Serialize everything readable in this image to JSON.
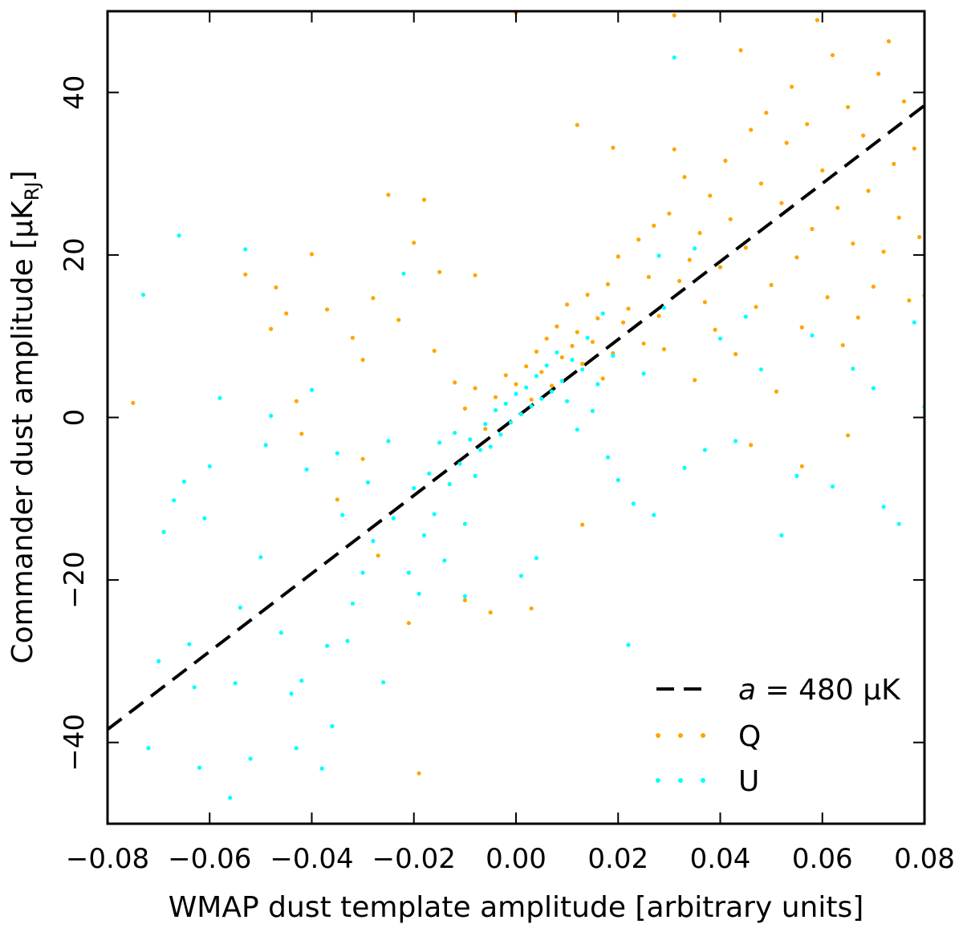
{
  "chart_data": {
    "type": "scatter",
    "title": "",
    "xlabel": "WMAP dust template amplitude [arbitrary units]",
    "ylabel": "Commander dust amplitude [μK",
    "ylabel_sub": "RJ",
    "ylabel_close": "]",
    "xlim": [
      -0.08,
      0.08
    ],
    "ylim": [
      -50,
      50
    ],
    "xticks": [
      -0.08,
      -0.06,
      -0.04,
      -0.02,
      0.0,
      0.02,
      0.04,
      0.06,
      0.08
    ],
    "xtick_labels": [
      "−0.08",
      "−0.06",
      "−0.04",
      "−0.02",
      "0.00",
      "0.02",
      "0.04",
      "0.06",
      "0.08"
    ],
    "yticks": [
      -40,
      -20,
      0,
      20,
      40
    ],
    "ytick_labels": [
      "−40",
      "−20",
      "0",
      "20",
      "40"
    ],
    "fit_line": {
      "name": "a = 480 μK",
      "slope": 480,
      "intercept": 0,
      "color": "#000000",
      "style": "dashed"
    },
    "legend": {
      "position": "bottom-right",
      "entries": [
        {
          "label_prefix": "a",
          "label_rest": " = 480 μK",
          "kind": "line",
          "color": "#000000"
        },
        {
          "label": "Q",
          "kind": "points",
          "color": "#ffa500"
        },
        {
          "label": "U",
          "kind": "points",
          "color": "#00ffff"
        }
      ]
    },
    "series": [
      {
        "name": "Q",
        "color": "#ffa500",
        "points": [
          [
            -0.075,
            1.8
          ],
          [
            -0.053,
            17.6
          ],
          [
            -0.047,
            16.0
          ],
          [
            -0.045,
            12.8
          ],
          [
            -0.048,
            10.9
          ],
          [
            -0.043,
            2.0
          ],
          [
            -0.042,
            -2.0
          ],
          [
            -0.04,
            20.1
          ],
          [
            -0.037,
            13.3
          ],
          [
            -0.035,
            -10.1
          ],
          [
            -0.032,
            9.8
          ],
          [
            -0.03,
            7.1
          ],
          [
            -0.028,
            14.7
          ],
          [
            -0.025,
            27.4
          ],
          [
            -0.023,
            12.0
          ],
          [
            -0.021,
            -25.3
          ],
          [
            -0.02,
            21.5
          ],
          [
            -0.018,
            26.8
          ],
          [
            -0.016,
            8.2
          ],
          [
            -0.015,
            17.9
          ],
          [
            -0.012,
            4.3
          ],
          [
            -0.01,
            1.1
          ],
          [
            -0.008,
            3.6
          ],
          [
            -0.006,
            -1.4
          ],
          [
            -0.004,
            2.5
          ],
          [
            -0.002,
            5.2
          ],
          [
            0.0,
            4.1
          ],
          [
            0.002,
            6.3
          ],
          [
            0.003,
            2.2
          ],
          [
            0.004,
            8.1
          ],
          [
            0.005,
            5.6
          ],
          [
            0.006,
            9.7
          ],
          [
            0.007,
            3.9
          ],
          [
            0.008,
            11.2
          ],
          [
            0.009,
            7.4
          ],
          [
            0.01,
            13.9
          ],
          [
            0.011,
            8.8
          ],
          [
            0.012,
            10.5
          ],
          [
            0.013,
            6.6
          ],
          [
            0.014,
            15.1
          ],
          [
            0.015,
            9.3
          ],
          [
            0.016,
            12.2
          ],
          [
            0.017,
            4.8
          ],
          [
            0.018,
            16.4
          ],
          [
            0.019,
            7.9
          ],
          [
            0.02,
            19.8
          ],
          [
            0.021,
            11.7
          ],
          [
            0.022,
            13.4
          ],
          [
            0.024,
            21.9
          ],
          [
            0.025,
            9.1
          ],
          [
            0.026,
            17.3
          ],
          [
            0.027,
            23.6
          ],
          [
            0.028,
            12.5
          ],
          [
            0.029,
            8.4
          ],
          [
            0.03,
            25.1
          ],
          [
            0.031,
            33.0
          ],
          [
            0.032,
            16.8
          ],
          [
            0.033,
            29.6
          ],
          [
            0.034,
            19.4
          ],
          [
            0.035,
            4.6
          ],
          [
            0.036,
            22.7
          ],
          [
            0.037,
            14.2
          ],
          [
            0.038,
            27.3
          ],
          [
            0.039,
            10.8
          ],
          [
            0.04,
            18.5
          ],
          [
            0.041,
            31.6
          ],
          [
            0.042,
            24.4
          ],
          [
            0.043,
            7.8
          ],
          [
            0.044,
            45.2
          ],
          [
            0.045,
            20.9
          ],
          [
            0.046,
            35.4
          ],
          [
            0.047,
            13.6
          ],
          [
            0.048,
            28.8
          ],
          [
            0.049,
            37.5
          ],
          [
            0.05,
            16.3
          ],
          [
            0.051,
            3.2
          ],
          [
            0.052,
            26.4
          ],
          [
            0.053,
            33.8
          ],
          [
            0.054,
            40.7
          ],
          [
            0.055,
            19.7
          ],
          [
            0.056,
            11.1
          ],
          [
            0.057,
            36.1
          ],
          [
            0.058,
            23.2
          ],
          [
            0.059,
            48.9
          ],
          [
            0.06,
            30.4
          ],
          [
            0.061,
            14.8
          ],
          [
            0.062,
            44.6
          ],
          [
            0.063,
            25.8
          ],
          [
            0.064,
            8.9
          ],
          [
            0.065,
            38.2
          ],
          [
            0.066,
            21.4
          ],
          [
            0.067,
            12.3
          ],
          [
            0.068,
            34.7
          ],
          [
            0.069,
            27.9
          ],
          [
            0.07,
            16.1
          ],
          [
            0.071,
            42.3
          ],
          [
            0.072,
            20.4
          ],
          [
            0.073,
            46.3
          ],
          [
            0.074,
            31.2
          ],
          [
            0.075,
            24.6
          ],
          [
            0.076,
            38.9
          ],
          [
            0.077,
            14.4
          ],
          [
            0.078,
            33.1
          ],
          [
            0.079,
            22.2
          ],
          [
            0.08,
            15.0
          ],
          [
            -0.019,
            -43.8
          ],
          [
            -0.01,
            -22.5
          ],
          [
            -0.005,
            -24.0
          ],
          [
            0.003,
            -23.5
          ],
          [
            0.013,
            -13.2
          ],
          [
            -0.027,
            -17.0
          ],
          [
            -0.03,
            -5.1
          ],
          [
            0.046,
            -3.4
          ],
          [
            0.056,
            -6.0
          ],
          [
            0.065,
            -2.2
          ],
          [
            0.031,
            49.5
          ],
          [
            0.0,
            49.8
          ],
          [
            -0.008,
            17.5
          ],
          [
            0.012,
            36.0
          ],
          [
            0.019,
            33.2
          ]
        ]
      },
      {
        "name": "U",
        "color": "#00ffff",
        "points": [
          [
            -0.073,
            15.1
          ],
          [
            -0.07,
            -30.0
          ],
          [
            -0.069,
            -14.1
          ],
          [
            -0.067,
            -10.2
          ],
          [
            -0.065,
            -7.9
          ],
          [
            -0.064,
            -27.9
          ],
          [
            -0.063,
            -33.2
          ],
          [
            -0.062,
            -43.1
          ],
          [
            -0.061,
            -12.4
          ],
          [
            -0.06,
            -6.0
          ],
          [
            -0.058,
            2.4
          ],
          [
            -0.056,
            -46.8
          ],
          [
            -0.055,
            -32.7
          ],
          [
            -0.054,
            -23.4
          ],
          [
            -0.052,
            -42.0
          ],
          [
            -0.05,
            -17.2
          ],
          [
            -0.049,
            -3.4
          ],
          [
            -0.048,
            0.2
          ],
          [
            -0.046,
            -26.5
          ],
          [
            -0.044,
            -34.0
          ],
          [
            -0.043,
            -40.7
          ],
          [
            -0.042,
            -32.4
          ],
          [
            -0.041,
            -6.4
          ],
          [
            -0.04,
            3.4
          ],
          [
            -0.038,
            -43.2
          ],
          [
            -0.037,
            -28.1
          ],
          [
            -0.035,
            -4.4
          ],
          [
            -0.034,
            -12.0
          ],
          [
            -0.032,
            -22.9
          ],
          [
            -0.03,
            -19.1
          ],
          [
            -0.029,
            -8.0
          ],
          [
            -0.028,
            -15.2
          ],
          [
            -0.026,
            -32.6
          ],
          [
            -0.025,
            -2.9
          ],
          [
            -0.024,
            -12.4
          ],
          [
            -0.022,
            17.7
          ],
          [
            -0.021,
            -19.1
          ],
          [
            -0.02,
            -8.7
          ],
          [
            -0.019,
            -21.7
          ],
          [
            -0.018,
            -14.5
          ],
          [
            -0.017,
            -6.9
          ],
          [
            -0.016,
            -11.9
          ],
          [
            -0.015,
            -3.1
          ],
          [
            -0.014,
            -17.6
          ],
          [
            -0.013,
            -8.2
          ],
          [
            -0.012,
            -1.9
          ],
          [
            -0.011,
            -5.7
          ],
          [
            -0.01,
            -13.1
          ],
          [
            -0.009,
            -2.7
          ],
          [
            -0.008,
            -7.2
          ],
          [
            -0.007,
            -4.0
          ],
          [
            -0.006,
            -0.8
          ],
          [
            -0.005,
            -3.6
          ],
          [
            -0.004,
            0.9
          ],
          [
            -0.003,
            -2.1
          ],
          [
            -0.002,
            1.7
          ],
          [
            -0.001,
            -0.6
          ],
          [
            0.0,
            2.9
          ],
          [
            0.001,
            0.4
          ],
          [
            0.002,
            3.7
          ],
          [
            0.003,
            1.4
          ],
          [
            0.004,
            5.1
          ],
          [
            0.005,
            2.3
          ],
          [
            0.006,
            6.4
          ],
          [
            0.007,
            3.2
          ],
          [
            0.008,
            8.0
          ],
          [
            0.009,
            4.5
          ],
          [
            0.01,
            2.0
          ],
          [
            0.011,
            7.1
          ],
          [
            0.012,
            -1.5
          ],
          [
            0.013,
            5.9
          ],
          [
            0.014,
            9.8
          ],
          [
            0.015,
            0.8
          ],
          [
            0.016,
            4.1
          ],
          [
            0.017,
            12.8
          ],
          [
            0.018,
            -4.9
          ],
          [
            0.019,
            7.6
          ],
          [
            0.02,
            -7.7
          ],
          [
            0.022,
            -28.0
          ],
          [
            0.023,
            -10.6
          ],
          [
            0.025,
            5.4
          ],
          [
            0.027,
            -12.0
          ],
          [
            0.029,
            13.5
          ],
          [
            0.031,
            44.3
          ],
          [
            0.033,
            -6.2
          ],
          [
            0.035,
            20.8
          ],
          [
            0.037,
            -4.0
          ],
          [
            0.04,
            9.7
          ],
          [
            0.043,
            -2.9
          ],
          [
            0.045,
            12.4
          ],
          [
            0.048,
            5.9
          ],
          [
            0.052,
            -14.5
          ],
          [
            0.055,
            -7.2
          ],
          [
            0.058,
            10.1
          ],
          [
            0.062,
            -8.5
          ],
          [
            0.066,
            6.0
          ],
          [
            0.07,
            3.6
          ],
          [
            0.072,
            -11.0
          ],
          [
            0.075,
            -13.1
          ],
          [
            0.078,
            11.7
          ],
          [
            0.08,
            1.3
          ],
          [
            -0.072,
            -40.7
          ],
          [
            -0.066,
            22.4
          ],
          [
            -0.053,
            20.7
          ],
          [
            -0.036,
            -38.0
          ],
          [
            -0.033,
            -27.5
          ],
          [
            -0.01,
            -22.0
          ],
          [
            0.001,
            -19.5
          ],
          [
            0.004,
            -17.3
          ],
          [
            0.028,
            19.9
          ]
        ]
      }
    ]
  }
}
